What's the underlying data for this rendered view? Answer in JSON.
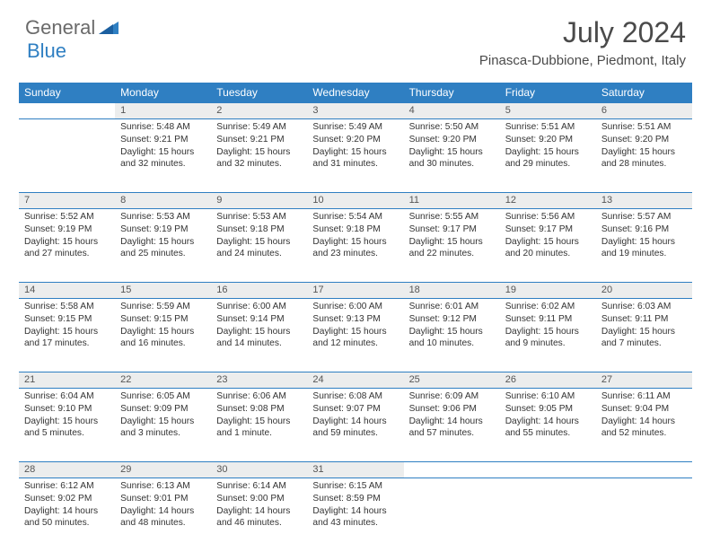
{
  "brand": {
    "name1": "General",
    "name2": "Blue"
  },
  "title": "July 2024",
  "location": "Pinasca-Dubbione, Piedmont, Italy",
  "colors": {
    "header_bg": "#2f7fc2",
    "daynum_bg": "#eceded",
    "border": "#2f7fc2",
    "title_color": "#4a4a4a",
    "logo_gray": "#6a6a6a",
    "logo_blue": "#2f7fc2",
    "text": "#333333"
  },
  "daynames": [
    "Sunday",
    "Monday",
    "Tuesday",
    "Wednesday",
    "Thursday",
    "Friday",
    "Saturday"
  ],
  "weeks": [
    [
      {
        "n": "",
        "lines": []
      },
      {
        "n": "1",
        "lines": [
          "Sunrise: 5:48 AM",
          "Sunset: 9:21 PM",
          "Daylight: 15 hours and 32 minutes."
        ]
      },
      {
        "n": "2",
        "lines": [
          "Sunrise: 5:49 AM",
          "Sunset: 9:21 PM",
          "Daylight: 15 hours and 32 minutes."
        ]
      },
      {
        "n": "3",
        "lines": [
          "Sunrise: 5:49 AM",
          "Sunset: 9:20 PM",
          "Daylight: 15 hours and 31 minutes."
        ]
      },
      {
        "n": "4",
        "lines": [
          "Sunrise: 5:50 AM",
          "Sunset: 9:20 PM",
          "Daylight: 15 hours and 30 minutes."
        ]
      },
      {
        "n": "5",
        "lines": [
          "Sunrise: 5:51 AM",
          "Sunset: 9:20 PM",
          "Daylight: 15 hours and 29 minutes."
        ]
      },
      {
        "n": "6",
        "lines": [
          "Sunrise: 5:51 AM",
          "Sunset: 9:20 PM",
          "Daylight: 15 hours and 28 minutes."
        ]
      }
    ],
    [
      {
        "n": "7",
        "lines": [
          "Sunrise: 5:52 AM",
          "Sunset: 9:19 PM",
          "Daylight: 15 hours and 27 minutes."
        ]
      },
      {
        "n": "8",
        "lines": [
          "Sunrise: 5:53 AM",
          "Sunset: 9:19 PM",
          "Daylight: 15 hours and 25 minutes."
        ]
      },
      {
        "n": "9",
        "lines": [
          "Sunrise: 5:53 AM",
          "Sunset: 9:18 PM",
          "Daylight: 15 hours and 24 minutes."
        ]
      },
      {
        "n": "10",
        "lines": [
          "Sunrise: 5:54 AM",
          "Sunset: 9:18 PM",
          "Daylight: 15 hours and 23 minutes."
        ]
      },
      {
        "n": "11",
        "lines": [
          "Sunrise: 5:55 AM",
          "Sunset: 9:17 PM",
          "Daylight: 15 hours and 22 minutes."
        ]
      },
      {
        "n": "12",
        "lines": [
          "Sunrise: 5:56 AM",
          "Sunset: 9:17 PM",
          "Daylight: 15 hours and 20 minutes."
        ]
      },
      {
        "n": "13",
        "lines": [
          "Sunrise: 5:57 AM",
          "Sunset: 9:16 PM",
          "Daylight: 15 hours and 19 minutes."
        ]
      }
    ],
    [
      {
        "n": "14",
        "lines": [
          "Sunrise: 5:58 AM",
          "Sunset: 9:15 PM",
          "Daylight: 15 hours and 17 minutes."
        ]
      },
      {
        "n": "15",
        "lines": [
          "Sunrise: 5:59 AM",
          "Sunset: 9:15 PM",
          "Daylight: 15 hours and 16 minutes."
        ]
      },
      {
        "n": "16",
        "lines": [
          "Sunrise: 6:00 AM",
          "Sunset: 9:14 PM",
          "Daylight: 15 hours and 14 minutes."
        ]
      },
      {
        "n": "17",
        "lines": [
          "Sunrise: 6:00 AM",
          "Sunset: 9:13 PM",
          "Daylight: 15 hours and 12 minutes."
        ]
      },
      {
        "n": "18",
        "lines": [
          "Sunrise: 6:01 AM",
          "Sunset: 9:12 PM",
          "Daylight: 15 hours and 10 minutes."
        ]
      },
      {
        "n": "19",
        "lines": [
          "Sunrise: 6:02 AM",
          "Sunset: 9:11 PM",
          "Daylight: 15 hours and 9 minutes."
        ]
      },
      {
        "n": "20",
        "lines": [
          "Sunrise: 6:03 AM",
          "Sunset: 9:11 PM",
          "Daylight: 15 hours and 7 minutes."
        ]
      }
    ],
    [
      {
        "n": "21",
        "lines": [
          "Sunrise: 6:04 AM",
          "Sunset: 9:10 PM",
          "Daylight: 15 hours and 5 minutes."
        ]
      },
      {
        "n": "22",
        "lines": [
          "Sunrise: 6:05 AM",
          "Sunset: 9:09 PM",
          "Daylight: 15 hours and 3 minutes."
        ]
      },
      {
        "n": "23",
        "lines": [
          "Sunrise: 6:06 AM",
          "Sunset: 9:08 PM",
          "Daylight: 15 hours and 1 minute."
        ]
      },
      {
        "n": "24",
        "lines": [
          "Sunrise: 6:08 AM",
          "Sunset: 9:07 PM",
          "Daylight: 14 hours and 59 minutes."
        ]
      },
      {
        "n": "25",
        "lines": [
          "Sunrise: 6:09 AM",
          "Sunset: 9:06 PM",
          "Daylight: 14 hours and 57 minutes."
        ]
      },
      {
        "n": "26",
        "lines": [
          "Sunrise: 6:10 AM",
          "Sunset: 9:05 PM",
          "Daylight: 14 hours and 55 minutes."
        ]
      },
      {
        "n": "27",
        "lines": [
          "Sunrise: 6:11 AM",
          "Sunset: 9:04 PM",
          "Daylight: 14 hours and 52 minutes."
        ]
      }
    ],
    [
      {
        "n": "28",
        "lines": [
          "Sunrise: 6:12 AM",
          "Sunset: 9:02 PM",
          "Daylight: 14 hours and 50 minutes."
        ]
      },
      {
        "n": "29",
        "lines": [
          "Sunrise: 6:13 AM",
          "Sunset: 9:01 PM",
          "Daylight: 14 hours and 48 minutes."
        ]
      },
      {
        "n": "30",
        "lines": [
          "Sunrise: 6:14 AM",
          "Sunset: 9:00 PM",
          "Daylight: 14 hours and 46 minutes."
        ]
      },
      {
        "n": "31",
        "lines": [
          "Sunrise: 6:15 AM",
          "Sunset: 8:59 PM",
          "Daylight: 14 hours and 43 minutes."
        ]
      },
      {
        "n": "",
        "lines": []
      },
      {
        "n": "",
        "lines": []
      },
      {
        "n": "",
        "lines": []
      }
    ]
  ]
}
